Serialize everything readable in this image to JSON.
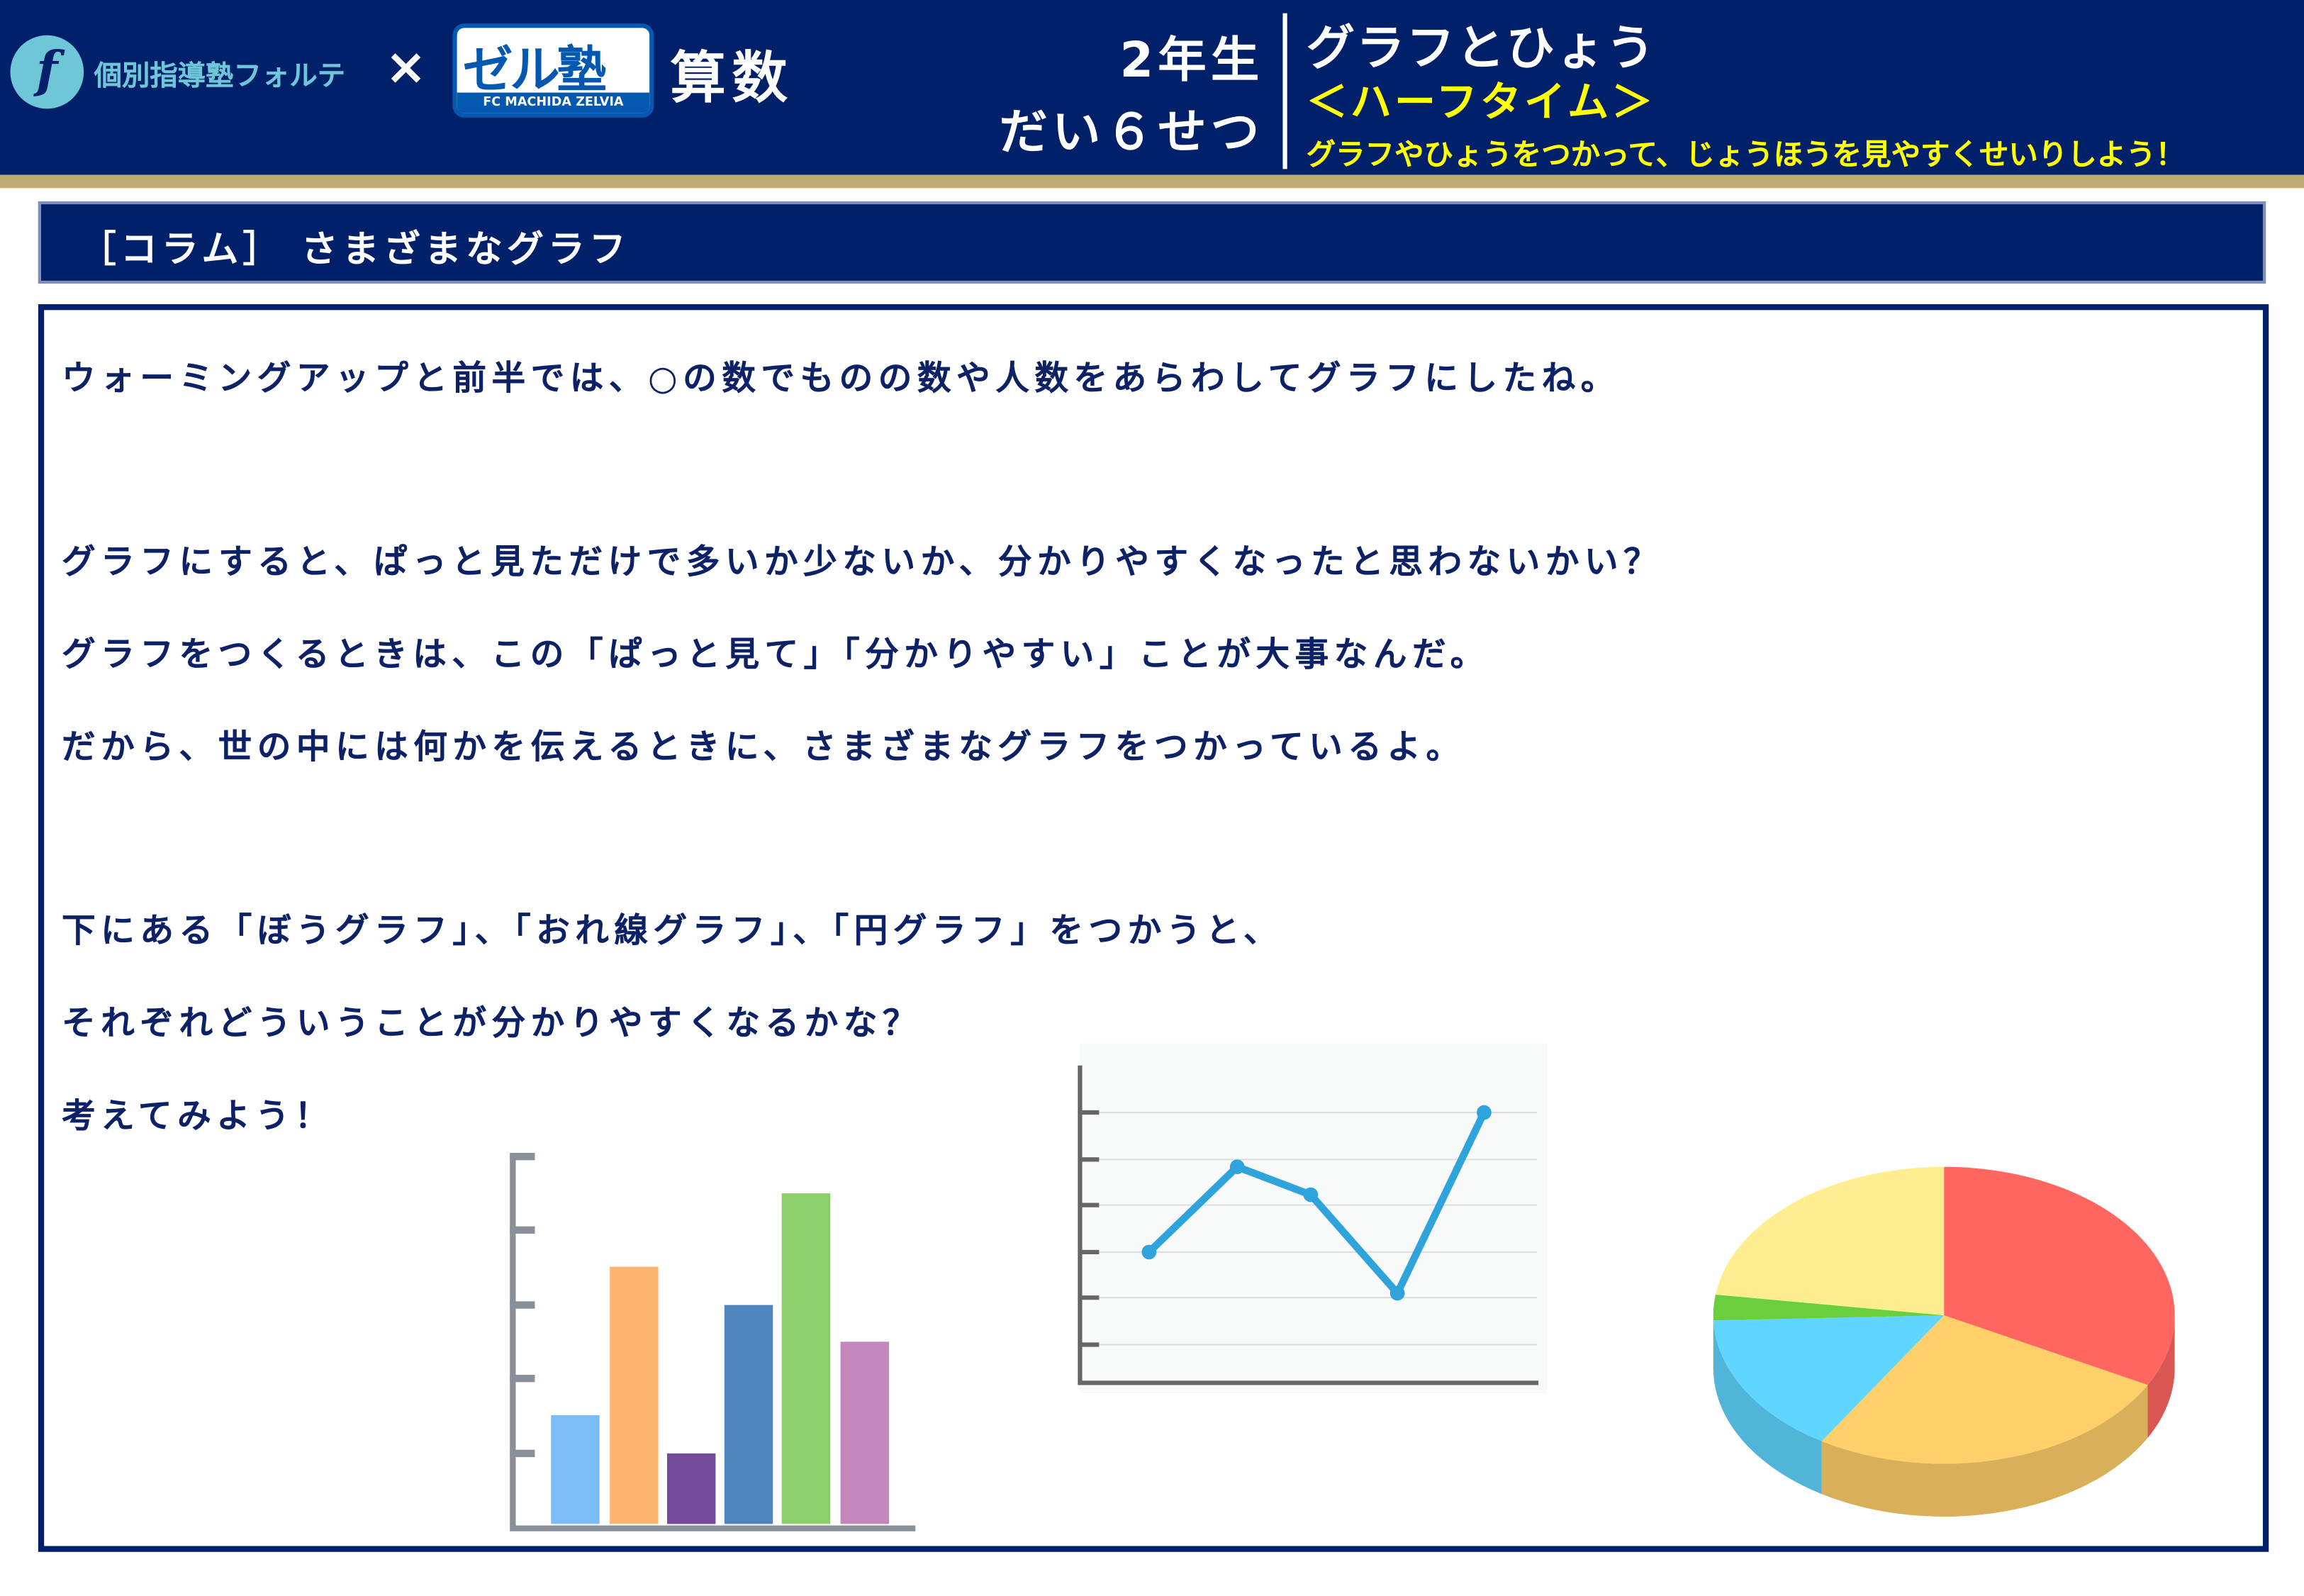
{
  "header": {
    "brand_logo_letter": "f",
    "brand_name": "個別指導塾フォルテ",
    "times": "×",
    "partner_logo": {
      "mark": "ゼル塾",
      "sub": "FC MACHIDA ZELVIA"
    },
    "subject": "算数",
    "grade": "2年生",
    "lesson": "だい６せつ",
    "unit_title": "グラフとひょう",
    "part": "＜ハーフタイム＞",
    "goal": "グラフやひょうをつかって、じょうほうを見やすくせいりしよう！"
  },
  "section": {
    "title": "［コラム］ さまざまなグラフ"
  },
  "body": {
    "lines": [
      "ウォーミングアップと前半では、○の数でものの数や人数をあらわしてグラフにしたね。",
      "グラフにすると、ぱっと見ただけで多いか少ないか、分かりやすくなったと思わないかい？",
      "グラフをつくるときは、この「ぱっと見て」「分かりやすい」ことが大事なんだ。",
      "だから、世の中には何かを伝えるときに、さまざまなグラフをつかっているよ。",
      "下にある「ぼうグラフ」、「おれ線グラフ」、「円グラフ」をつかうと、",
      "それぞれどういうことが分かりやすくなるかな？",
      "考えてみよう！"
    ]
  },
  "illustrations": {
    "bar_colors": [
      "#7cbcf6",
      "#fbb46c",
      "#744b9c",
      "#4f86bd",
      "#8ccf6a",
      "#c387bc"
    ],
    "line_color": "#2fa3dc",
    "pie_colors": [
      "#ff6660",
      "#ffcf6a",
      "#5fd5ff",
      "#69cf3c",
      "#ffee8f"
    ]
  },
  "colors": {
    "navy": "#00206a",
    "gold": "#c0ad72",
    "yellow": "#ffff00",
    "text": "#0c2166"
  }
}
